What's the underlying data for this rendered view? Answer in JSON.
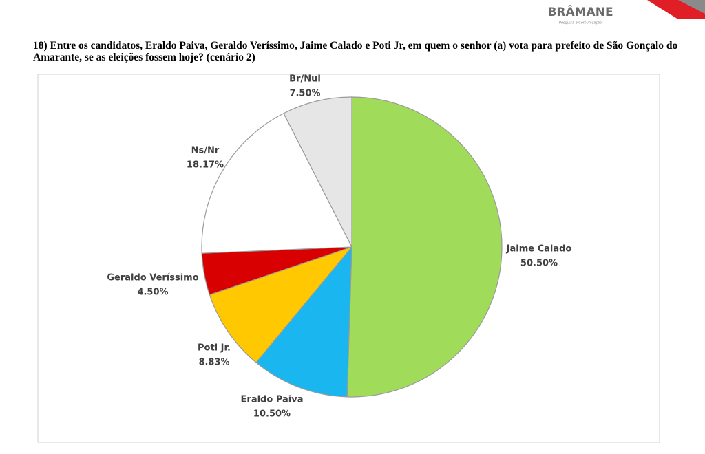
{
  "logo": {
    "name": "BRÂMANE",
    "tagline": "Pesquisa e Comunicação"
  },
  "chart_data": {
    "type": "pie",
    "title": "18) Entre os candidatos, Eraldo Paiva, Geraldo Veríssimo, Jaime Calado e Poti Jr, em quem o senhor (a) vota para prefeito de São Gonçalo do Amarante, se as eleições fossem hoje? (cenário 2)",
    "categories": [
      "Jaime Calado",
      "Eraldo Paiva",
      "Poti Jr.",
      "Geraldo Veríssimo",
      "Ns/Nr",
      "Br/Nul"
    ],
    "values": [
      50.5,
      10.5,
      8.83,
      4.5,
      18.17,
      7.5
    ],
    "value_labels": [
      "50.50%",
      "10.50%",
      "8.83%",
      "4.50%",
      "18.17%",
      "7.50%"
    ],
    "colors": [
      "#a0dc5a",
      "#1ab6ef",
      "#ffc800",
      "#d80000",
      "#ffffff",
      "#e6e6e6"
    ]
  }
}
